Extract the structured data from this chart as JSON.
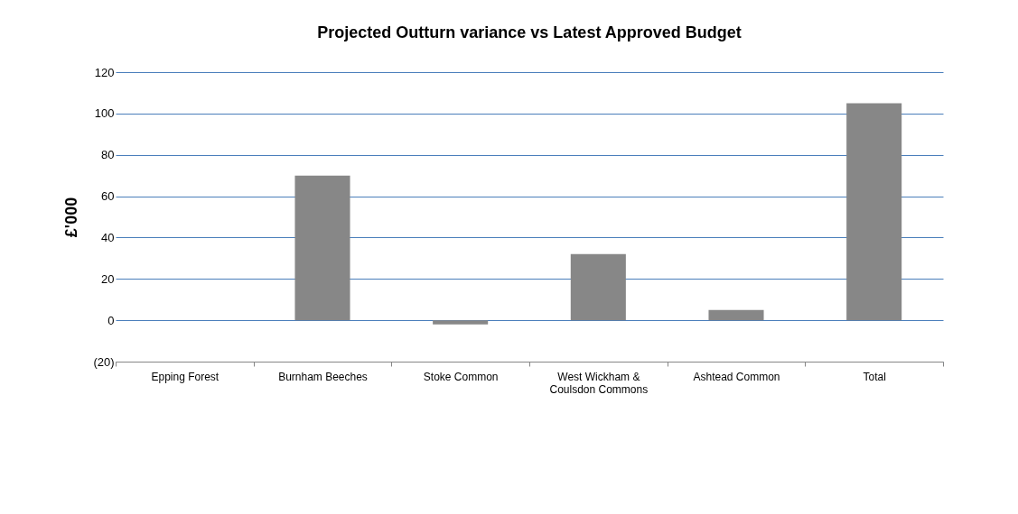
{
  "chart_data": {
    "type": "bar",
    "title": "Projected Outturn variance vs Latest Approved Budget",
    "ylabel": "£'000",
    "categories": [
      "Epping Forest",
      "Burnham Beeches",
      "Stoke Common",
      "West Wickham & Coulsdon Commons",
      "Ashtead Common",
      "Total"
    ],
    "values": [
      0,
      70,
      -2,
      32,
      5,
      105
    ],
    "color": "#878787",
    "ylim": [
      -20,
      120
    ],
    "yticks": [
      {
        "value": -20,
        "label": "(20)"
      },
      0,
      20,
      40,
      60,
      80,
      100,
      120
    ],
    "grid": "y"
  }
}
